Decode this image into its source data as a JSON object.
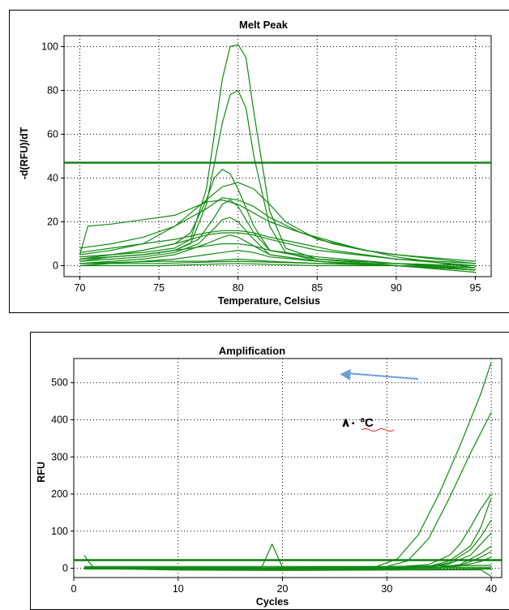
{
  "chart_data": [
    {
      "type": "line",
      "title": "Melt Peak",
      "xlabel": "Temperature, Celsius",
      "ylabel": "-d(RFU)/dT",
      "xlim": [
        69,
        96
      ],
      "ylim": [
        -5,
        105
      ],
      "xticks": [
        "70",
        "75",
        "80",
        "85",
        "90",
        "95"
      ],
      "yticks": [
        "0",
        "20",
        "40",
        "60",
        "80",
        "100"
      ],
      "grid": true,
      "threshold": 47,
      "colors": {
        "series": "#128a12",
        "threshold": "#0f7d0f",
        "grid": "#000000"
      },
      "series": [
        {
          "x": [
            70,
            72,
            74,
            76,
            77,
            78,
            79,
            79.5,
            80,
            80.5,
            81,
            82,
            83,
            85,
            90,
            95
          ],
          "y": [
            3,
            5,
            6,
            8,
            12,
            35,
            85,
            100,
            101,
            95,
            70,
            25,
            8,
            3,
            1,
            -1
          ]
        },
        {
          "x": [
            70,
            72,
            74,
            76,
            77,
            78,
            79,
            79.5,
            80,
            80.5,
            81,
            82,
            83,
            85,
            90,
            95
          ],
          "y": [
            2,
            4,
            5,
            7,
            10,
            28,
            65,
            78,
            80,
            72,
            50,
            18,
            6,
            2,
            0,
            -2
          ]
        },
        {
          "x": [
            70,
            72,
            74,
            76,
            77,
            78,
            78.5,
            79,
            79.5,
            80,
            81,
            82,
            85,
            90,
            95
          ],
          "y": [
            4,
            5,
            7,
            10,
            15,
            30,
            40,
            44,
            42,
            35,
            18,
            7,
            3,
            1,
            -2
          ]
        },
        {
          "x": [
            70,
            72,
            74,
            76,
            78,
            79,
            80,
            81,
            82,
            83,
            85,
            90,
            95
          ],
          "y": [
            5,
            7,
            10,
            18,
            30,
            36,
            38,
            35,
            28,
            20,
            12,
            4,
            -1
          ]
        },
        {
          "x": [
            70,
            70.5,
            72,
            74,
            76,
            78,
            79,
            80,
            81,
            82,
            84,
            86,
            88,
            90,
            95
          ],
          "y": [
            5,
            18,
            19,
            21,
            23,
            29,
            30,
            28,
            24,
            20,
            15,
            11,
            7,
            5,
            1
          ]
        },
        {
          "x": [
            70,
            72,
            74,
            76,
            78,
            79,
            80,
            81,
            82,
            84,
            86,
            88,
            90,
            95
          ],
          "y": [
            8,
            10,
            13,
            18,
            26,
            31,
            30,
            27,
            22,
            15,
            10,
            7,
            5,
            2
          ]
        },
        {
          "x": [
            70,
            72,
            74,
            76,
            77.5,
            78.5,
            79,
            79.5,
            80,
            81,
            82,
            85,
            90,
            95
          ],
          "y": [
            3,
            4,
            5,
            7,
            12,
            22,
            28,
            30,
            27,
            15,
            7,
            3,
            0,
            -2
          ]
        },
        {
          "x": [
            70,
            72,
            74,
            76,
            78,
            79,
            80,
            81,
            82,
            84,
            86,
            88,
            90,
            95
          ],
          "y": [
            6,
            8,
            10,
            12,
            15,
            16,
            16,
            15,
            13,
            10,
            7,
            5,
            3,
            1
          ]
        },
        {
          "x": [
            70,
            72,
            74,
            76,
            78,
            79,
            80,
            81,
            82,
            85,
            90,
            95
          ],
          "y": [
            4,
            5,
            7,
            10,
            14,
            15,
            15,
            14,
            12,
            7,
            3,
            0
          ]
        },
        {
          "x": [
            70,
            72,
            74,
            76,
            77.5,
            78.5,
            79,
            79.5,
            80,
            81,
            82,
            85,
            90,
            95
          ],
          "y": [
            2,
            3,
            4,
            6,
            10,
            17,
            21,
            22,
            20,
            12,
            5,
            2,
            0,
            -3
          ]
        },
        {
          "x": [
            70,
            72,
            74,
            76,
            78,
            79,
            79.5,
            80,
            81,
            82,
            85,
            90,
            95
          ],
          "y": [
            1,
            2,
            3,
            5,
            10,
            13,
            14,
            13,
            9,
            5,
            2,
            0,
            -2
          ]
        },
        {
          "x": [
            70,
            72,
            74,
            76,
            78,
            79,
            80,
            81,
            82,
            85,
            90,
            95
          ],
          "y": [
            3,
            4,
            5,
            7,
            9,
            10,
            10,
            9,
            7,
            4,
            1,
            -1
          ]
        },
        {
          "x": [
            70,
            72,
            74,
            76,
            78,
            79,
            80,
            81,
            82,
            85,
            90,
            95
          ],
          "y": [
            0,
            1,
            2,
            3,
            5,
            6,
            7,
            6,
            4,
            2,
            0,
            -1
          ]
        },
        {
          "x": [
            70,
            75,
            78,
            80,
            82,
            85,
            90,
            95
          ],
          "y": [
            1,
            2,
            2,
            3,
            2,
            1,
            0,
            -2
          ]
        },
        {
          "x": [
            70,
            75,
            80,
            85,
            90,
            95
          ],
          "y": [
            0,
            0,
            1,
            0,
            0,
            -1
          ]
        },
        {
          "x": [
            70,
            75,
            80,
            85,
            90,
            95
          ],
          "y": [
            1,
            1,
            2,
            1,
            1,
            0
          ]
        }
      ]
    },
    {
      "type": "line",
      "title": "Amplification",
      "xlabel": "Cycles",
      "ylabel": "RFU",
      "xlim": [
        0,
        41
      ],
      "ylim": [
        -25,
        565
      ],
      "xticks": [
        "0",
        "10",
        "20",
        "30",
        "40"
      ],
      "yticks": [
        "0",
        "100",
        "200",
        "300",
        "400",
        "500"
      ],
      "grid": true,
      "threshold": 22,
      "annotation": "٨٠ ºC",
      "arrow": {
        "from": [
          33,
          510
        ],
        "to": [
          25.5,
          523
        ],
        "color": "#6a9fd8"
      },
      "colors": {
        "series": "#128a12",
        "threshold": "#0f7d0f",
        "grid": "#000000"
      },
      "series": [
        {
          "x": [
            1,
            10,
            20,
            29,
            31,
            33,
            35,
            37,
            39,
            40
          ],
          "y": [
            0,
            0,
            2,
            5,
            25,
            90,
            200,
            330,
            470,
            555
          ]
        },
        {
          "x": [
            1,
            10,
            20,
            30,
            32,
            34,
            36,
            38,
            40
          ],
          "y": [
            0,
            0,
            1,
            5,
            20,
            80,
            190,
            310,
            420
          ]
        },
        {
          "x": [
            1,
            10,
            20,
            30,
            34,
            36,
            37,
            38,
            39,
            40
          ],
          "y": [
            0,
            0,
            0,
            2,
            10,
            35,
            65,
            110,
            160,
            200
          ]
        },
        {
          "x": [
            1,
            10,
            20,
            30,
            34,
            36,
            38,
            39,
            40
          ],
          "y": [
            0,
            0,
            0,
            1,
            5,
            20,
            60,
            110,
            190
          ]
        },
        {
          "x": [
            1,
            10,
            20,
            30,
            34,
            36,
            38,
            39,
            40
          ],
          "y": [
            0,
            0,
            0,
            1,
            4,
            15,
            50,
            85,
            130
          ]
        },
        {
          "x": [
            1,
            10,
            20,
            30,
            34,
            36,
            38,
            39,
            40
          ],
          "y": [
            0,
            0,
            0,
            0,
            3,
            12,
            35,
            65,
            95
          ]
        },
        {
          "x": [
            1,
            10,
            20,
            30,
            35,
            37,
            38,
            39,
            40
          ],
          "y": [
            0,
            0,
            0,
            0,
            3,
            10,
            25,
            40,
            60
          ]
        },
        {
          "x": [
            1,
            10,
            20,
            30,
            35,
            37,
            38,
            39,
            40
          ],
          "y": [
            0,
            0,
            0,
            0,
            2,
            8,
            18,
            30,
            45
          ]
        },
        {
          "x": [
            1,
            10,
            20,
            30,
            35,
            37,
            39,
            40
          ],
          "y": [
            0,
            0,
            0,
            0,
            2,
            6,
            18,
            30
          ]
        },
        {
          "x": [
            1,
            18,
            19,
            20,
            30,
            40
          ],
          "y": [
            2,
            2,
            65,
            2,
            2,
            3
          ]
        },
        {
          "x": [
            1,
            1.5,
            2,
            10,
            20,
            30,
            40
          ],
          "y": [
            35,
            15,
            0,
            -3,
            -4,
            -3,
            0
          ]
        },
        {
          "x": [
            1,
            10,
            20,
            30,
            39,
            40
          ],
          "y": [
            0,
            -5,
            -6,
            -5,
            -4,
            -22
          ]
        },
        {
          "x": [
            1,
            10,
            20,
            30,
            40
          ],
          "y": [
            5,
            5,
            5,
            5,
            8
          ]
        },
        {
          "x": [
            1,
            10,
            20,
            30,
            40
          ],
          "y": [
            -2,
            -2,
            -2,
            -2,
            -2
          ]
        }
      ]
    }
  ]
}
